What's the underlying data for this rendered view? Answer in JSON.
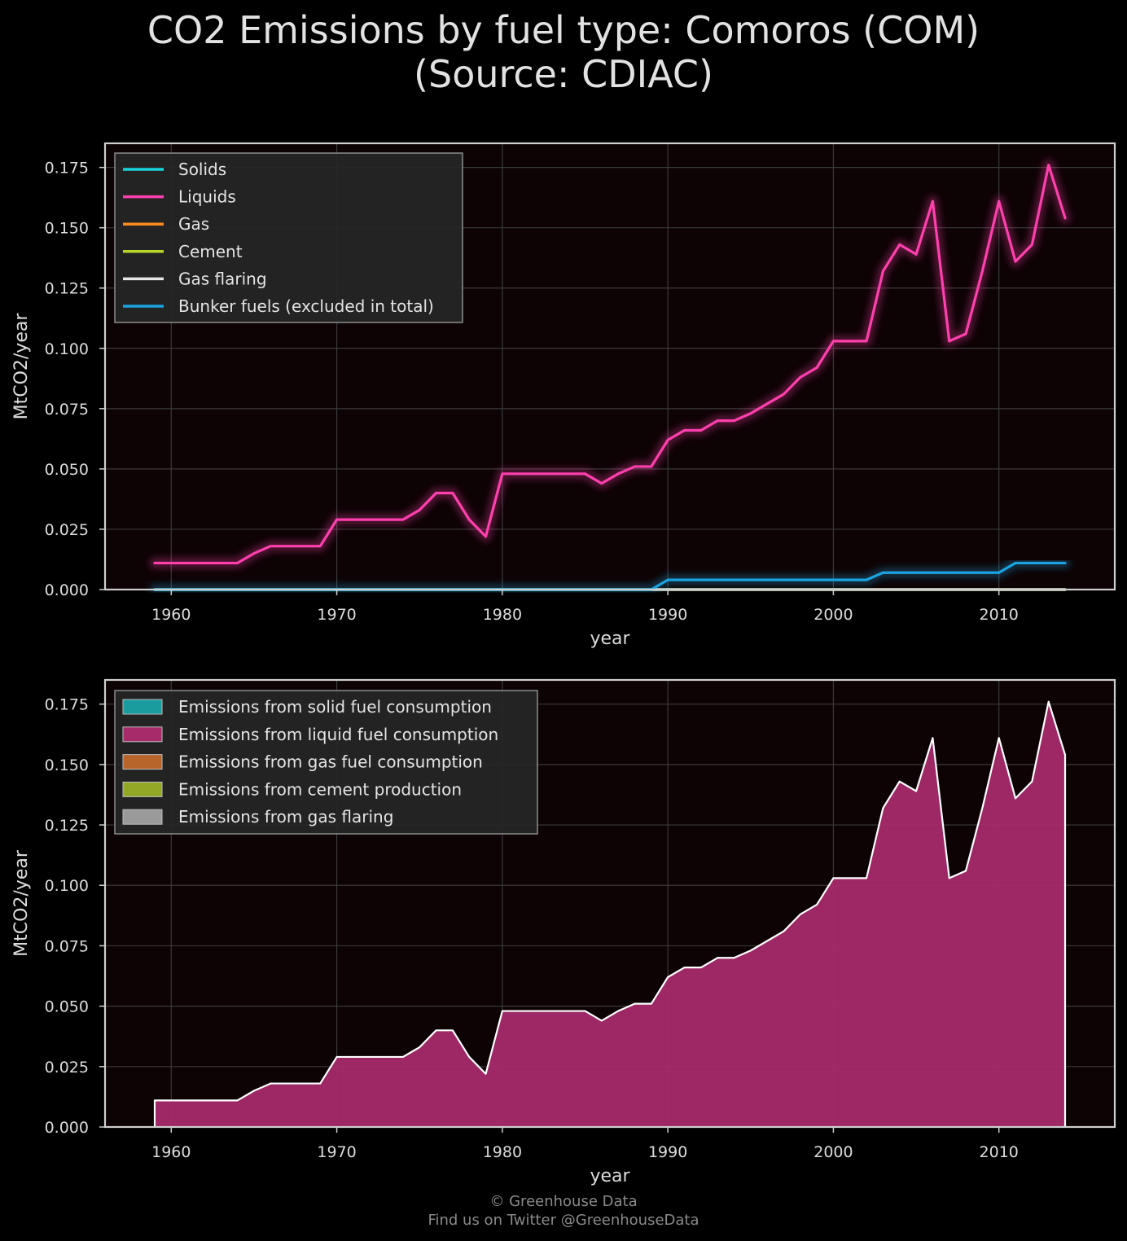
{
  "title": {
    "line1": "CO2 Emissions by fuel type: Comoros (COM)",
    "line2": "(Source: CDIAC)"
  },
  "footer": {
    "line1": "© Greenhouse Data",
    "line2": "Find us on Twitter @GreenhouseData"
  },
  "colors": {
    "background": "#000000",
    "plot_background": "#0d0204",
    "solids": "#19d3da",
    "liquids": "#ff3fae",
    "gas": "#ff8a1f",
    "cement": "#b7d62b",
    "gas_flaring": "#e6e6e6",
    "bunker": "#1aa3e0",
    "liquid_area": "#a72a6a"
  },
  "chart_data": [
    {
      "type": "line",
      "xlabel": "year",
      "ylabel": "MtCO2/year",
      "xlim": [
        1956,
        2017
      ],
      "ylim": [
        0,
        0.185
      ],
      "xticks": [
        "1960",
        "1970",
        "1980",
        "1990",
        "2000",
        "2010"
      ],
      "yticks": [
        "0.000",
        "0.025",
        "0.050",
        "0.075",
        "0.100",
        "0.125",
        "0.150",
        "0.175"
      ],
      "grid": true,
      "legend_position": "top-left",
      "x": [
        1959,
        1960,
        1961,
        1962,
        1963,
        1964,
        1965,
        1966,
        1967,
        1968,
        1969,
        1970,
        1971,
        1972,
        1973,
        1974,
        1975,
        1976,
        1977,
        1978,
        1979,
        1980,
        1981,
        1982,
        1983,
        1984,
        1985,
        1986,
        1987,
        1988,
        1989,
        1990,
        1991,
        1992,
        1993,
        1994,
        1995,
        1996,
        1997,
        1998,
        1999,
        2000,
        2001,
        2002,
        2003,
        2004,
        2005,
        2006,
        2007,
        2008,
        2009,
        2010,
        2011,
        2012,
        2013,
        2014
      ],
      "series": [
        {
          "name": "Solids",
          "color": "#19d3da",
          "values": [
            0,
            0,
            0,
            0,
            0,
            0,
            0,
            0,
            0,
            0,
            0,
            0,
            0,
            0,
            0,
            0,
            0,
            0,
            0,
            0,
            0,
            0,
            0,
            0,
            0,
            0,
            0,
            0,
            0,
            0,
            0,
            0,
            0,
            0,
            0,
            0,
            0,
            0,
            0,
            0,
            0,
            0,
            0,
            0,
            0,
            0,
            0,
            0,
            0,
            0,
            0,
            0,
            0,
            0,
            0,
            0
          ]
        },
        {
          "name": "Liquids",
          "color": "#ff3fae",
          "values": [
            0.011,
            0.011,
            0.011,
            0.011,
            0.011,
            0.011,
            0.015,
            0.018,
            0.018,
            0.018,
            0.018,
            0.029,
            0.029,
            0.029,
            0.029,
            0.029,
            0.033,
            0.04,
            0.04,
            0.029,
            0.022,
            0.048,
            0.048,
            0.048,
            0.048,
            0.048,
            0.048,
            0.044,
            0.048,
            0.051,
            0.051,
            0.062,
            0.066,
            0.066,
            0.07,
            0.07,
            0.073,
            0.077,
            0.081,
            0.088,
            0.092,
            0.103,
            0.103,
            0.103,
            0.132,
            0.143,
            0.139,
            0.161,
            0.103,
            0.106,
            0.132,
            0.161,
            0.136,
            0.143,
            0.176,
            0.154
          ]
        },
        {
          "name": "Gas",
          "color": "#ff8a1f",
          "values": [
            0,
            0,
            0,
            0,
            0,
            0,
            0,
            0,
            0,
            0,
            0,
            0,
            0,
            0,
            0,
            0,
            0,
            0,
            0,
            0,
            0,
            0,
            0,
            0,
            0,
            0,
            0,
            0,
            0,
            0,
            0,
            0,
            0,
            0,
            0,
            0,
            0,
            0,
            0,
            0,
            0,
            0,
            0,
            0,
            0,
            0,
            0,
            0,
            0,
            0,
            0,
            0,
            0,
            0,
            0,
            0
          ]
        },
        {
          "name": "Cement",
          "color": "#b7d62b",
          "values": [
            0,
            0,
            0,
            0,
            0,
            0,
            0,
            0,
            0,
            0,
            0,
            0,
            0,
            0,
            0,
            0,
            0,
            0,
            0,
            0,
            0,
            0,
            0,
            0,
            0,
            0,
            0,
            0,
            0,
            0,
            0,
            0,
            0,
            0,
            0,
            0,
            0,
            0,
            0,
            0,
            0,
            0,
            0,
            0,
            0,
            0,
            0,
            0,
            0,
            0,
            0,
            0,
            0,
            0,
            0,
            0
          ]
        },
        {
          "name": "Gas flaring",
          "color": "#e6e6e6",
          "values": [
            0,
            0,
            0,
            0,
            0,
            0,
            0,
            0,
            0,
            0,
            0,
            0,
            0,
            0,
            0,
            0,
            0,
            0,
            0,
            0,
            0,
            0,
            0,
            0,
            0,
            0,
            0,
            0,
            0,
            0,
            0,
            0,
            0,
            0,
            0,
            0,
            0,
            0,
            0,
            0,
            0,
            0,
            0,
            0,
            0,
            0,
            0,
            0,
            0,
            0,
            0,
            0,
            0,
            0,
            0,
            0
          ]
        },
        {
          "name": "Bunker fuels (excluded in total)",
          "color": "#1aa3e0",
          "values": [
            0,
            0,
            0,
            0,
            0,
            0,
            0,
            0,
            0,
            0,
            0,
            0,
            0,
            0,
            0,
            0,
            0,
            0,
            0,
            0,
            0,
            0,
            0,
            0,
            0,
            0,
            0,
            0,
            0,
            0,
            0,
            0.004,
            0.004,
            0.004,
            0.004,
            0.004,
            0.004,
            0.004,
            0.004,
            0.004,
            0.004,
            0.004,
            0.004,
            0.004,
            0.007,
            0.007,
            0.007,
            0.007,
            0.007,
            0.007,
            0.007,
            0.007,
            0.011,
            0.011,
            0.011,
            0.011
          ]
        }
      ]
    },
    {
      "type": "area",
      "xlabel": "year",
      "ylabel": "MtCO2/year",
      "xlim": [
        1956,
        2017
      ],
      "ylim": [
        0,
        0.185
      ],
      "xticks": [
        "1960",
        "1970",
        "1980",
        "1990",
        "2000",
        "2010"
      ],
      "yticks": [
        "0.000",
        "0.025",
        "0.050",
        "0.075",
        "0.100",
        "0.125",
        "0.150",
        "0.175"
      ],
      "grid": true,
      "legend_position": "top-left",
      "stacked": true,
      "x": [
        1959,
        1960,
        1961,
        1962,
        1963,
        1964,
        1965,
        1966,
        1967,
        1968,
        1969,
        1970,
        1971,
        1972,
        1973,
        1974,
        1975,
        1976,
        1977,
        1978,
        1979,
        1980,
        1981,
        1982,
        1983,
        1984,
        1985,
        1986,
        1987,
        1988,
        1989,
        1990,
        1991,
        1992,
        1993,
        1994,
        1995,
        1996,
        1997,
        1998,
        1999,
        2000,
        2001,
        2002,
        2003,
        2004,
        2005,
        2006,
        2007,
        2008,
        2009,
        2010,
        2011,
        2012,
        2013,
        2014
      ],
      "series": [
        {
          "name": "Emissions from solid fuel consumption",
          "color": "#1a9c9e",
          "values": [
            0,
            0,
            0,
            0,
            0,
            0,
            0,
            0,
            0,
            0,
            0,
            0,
            0,
            0,
            0,
            0,
            0,
            0,
            0,
            0,
            0,
            0,
            0,
            0,
            0,
            0,
            0,
            0,
            0,
            0,
            0,
            0,
            0,
            0,
            0,
            0,
            0,
            0,
            0,
            0,
            0,
            0,
            0,
            0,
            0,
            0,
            0,
            0,
            0,
            0,
            0,
            0,
            0,
            0,
            0,
            0
          ]
        },
        {
          "name": "Emissions from liquid fuel consumption",
          "color": "#a72a6a",
          "values": [
            0.011,
            0.011,
            0.011,
            0.011,
            0.011,
            0.011,
            0.015,
            0.018,
            0.018,
            0.018,
            0.018,
            0.029,
            0.029,
            0.029,
            0.029,
            0.029,
            0.033,
            0.04,
            0.04,
            0.029,
            0.022,
            0.048,
            0.048,
            0.048,
            0.048,
            0.048,
            0.048,
            0.044,
            0.048,
            0.051,
            0.051,
            0.062,
            0.066,
            0.066,
            0.07,
            0.07,
            0.073,
            0.077,
            0.081,
            0.088,
            0.092,
            0.103,
            0.103,
            0.103,
            0.132,
            0.143,
            0.139,
            0.161,
            0.103,
            0.106,
            0.132,
            0.161,
            0.136,
            0.143,
            0.176,
            0.154
          ]
        },
        {
          "name": "Emissions from gas fuel consumption",
          "color": "#b8652b",
          "values": [
            0,
            0,
            0,
            0,
            0,
            0,
            0,
            0,
            0,
            0,
            0,
            0,
            0,
            0,
            0,
            0,
            0,
            0,
            0,
            0,
            0,
            0,
            0,
            0,
            0,
            0,
            0,
            0,
            0,
            0,
            0,
            0,
            0,
            0,
            0,
            0,
            0,
            0,
            0,
            0,
            0,
            0,
            0,
            0,
            0,
            0,
            0,
            0,
            0,
            0,
            0,
            0,
            0,
            0,
            0,
            0
          ]
        },
        {
          "name": "Emissions from cement production",
          "color": "#94a828",
          "values": [
            0,
            0,
            0,
            0,
            0,
            0,
            0,
            0,
            0,
            0,
            0,
            0,
            0,
            0,
            0,
            0,
            0,
            0,
            0,
            0,
            0,
            0,
            0,
            0,
            0,
            0,
            0,
            0,
            0,
            0,
            0,
            0,
            0,
            0,
            0,
            0,
            0,
            0,
            0,
            0,
            0,
            0,
            0,
            0,
            0,
            0,
            0,
            0,
            0,
            0,
            0,
            0,
            0,
            0,
            0,
            0
          ]
        },
        {
          "name": "Emissions from gas flaring",
          "color": "#9a9a9a",
          "values": [
            0,
            0,
            0,
            0,
            0,
            0,
            0,
            0,
            0,
            0,
            0,
            0,
            0,
            0,
            0,
            0,
            0,
            0,
            0,
            0,
            0,
            0,
            0,
            0,
            0,
            0,
            0,
            0,
            0,
            0,
            0,
            0,
            0,
            0,
            0,
            0,
            0,
            0,
            0,
            0,
            0,
            0,
            0,
            0,
            0,
            0,
            0,
            0,
            0,
            0,
            0,
            0,
            0,
            0,
            0,
            0
          ]
        }
      ]
    }
  ]
}
